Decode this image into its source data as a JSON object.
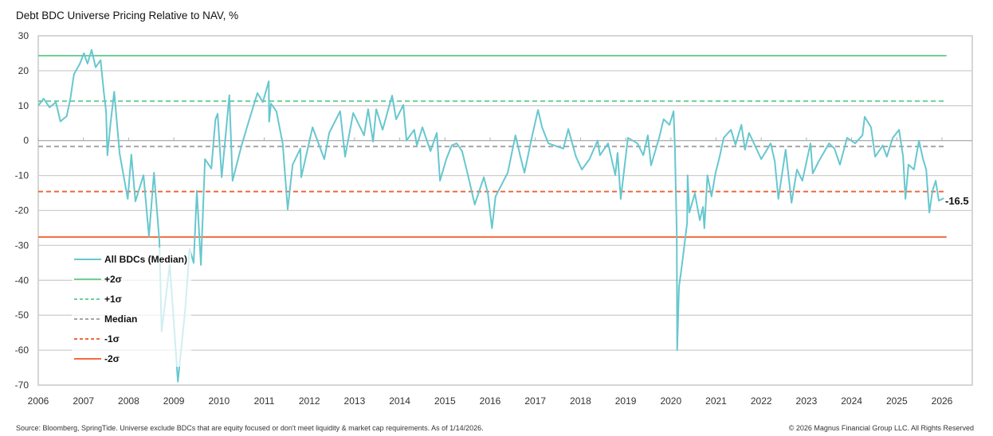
{
  "chart_data": {
    "type": "line",
    "title": "Debt BDC Universe Pricing Relative to NAV, %",
    "xlabel": "",
    "ylabel": "",
    "ylim": [
      -70,
      30
    ],
    "xlim": [
      2006,
      2026
    ],
    "yticks": [
      "30",
      "20",
      "10",
      "0",
      "-10",
      "-20",
      "-30",
      "-40",
      "-50",
      "-60",
      "-70"
    ],
    "xticks": [
      "2006",
      "2007",
      "2008",
      "2009",
      "2010",
      "2011",
      "2012",
      "2013",
      "2014",
      "2015",
      "2016",
      "2017",
      "2018",
      "2019",
      "2020",
      "2021",
      "2022",
      "2023",
      "2024",
      "2025",
      "2026"
    ],
    "grid": true,
    "legend_position": "bottom-left",
    "series": [
      {
        "name": "All BDCs (Median)",
        "color": "#67c7cf",
        "points": [
          [
            2006.0,
            10
          ],
          [
            2006.12,
            12
          ],
          [
            2006.25,
            9.5
          ],
          [
            2006.39,
            11
          ],
          [
            2006.49,
            5.5
          ],
          [
            2006.63,
            7
          ],
          [
            2006.71,
            12
          ],
          [
            2006.79,
            19
          ],
          [
            2006.92,
            22
          ],
          [
            2007.01,
            25
          ],
          [
            2007.09,
            22
          ],
          [
            2007.18,
            26
          ],
          [
            2007.27,
            21
          ],
          [
            2007.38,
            23
          ],
          [
            2007.45,
            14
          ],
          [
            2007.5,
            8.4
          ],
          [
            2007.53,
            -4.2
          ],
          [
            2007.6,
            5
          ],
          [
            2007.68,
            14
          ],
          [
            2007.8,
            -3.7
          ],
          [
            2007.98,
            -16.7
          ],
          [
            2008.06,
            -4
          ],
          [
            2008.15,
            -17.4
          ],
          [
            2008.33,
            -9.9
          ],
          [
            2008.45,
            -27.4
          ],
          [
            2008.56,
            -9.2
          ],
          [
            2008.68,
            -28.8
          ],
          [
            2008.73,
            -54.7
          ],
          [
            2008.91,
            -35.6
          ],
          [
            2009.0,
            -52
          ],
          [
            2009.09,
            -69
          ],
          [
            2009.25,
            -48.6
          ],
          [
            2009.35,
            -31
          ],
          [
            2009.44,
            -35
          ],
          [
            2009.51,
            -14.4
          ],
          [
            2009.6,
            -35.6
          ],
          [
            2009.69,
            -5.3
          ],
          [
            2009.83,
            -8
          ],
          [
            2009.92,
            6
          ],
          [
            2009.97,
            7.7
          ],
          [
            2010.06,
            -10.5
          ],
          [
            2010.23,
            13
          ],
          [
            2010.3,
            -11.5
          ],
          [
            2010.5,
            -1.4
          ],
          [
            2010.67,
            6
          ],
          [
            2010.85,
            13.6
          ],
          [
            2010.97,
            11
          ],
          [
            2011.1,
            17
          ],
          [
            2011.11,
            5.4
          ],
          [
            2011.15,
            10.6
          ],
          [
            2011.27,
            8.4
          ],
          [
            2011.41,
            -0.8
          ],
          [
            2011.52,
            -19.7
          ],
          [
            2011.63,
            -6.9
          ],
          [
            2011.8,
            -2.3
          ],
          [
            2011.82,
            -10.5
          ],
          [
            2012.07,
            3.8
          ],
          [
            2012.33,
            -5.3
          ],
          [
            2012.44,
            2.2
          ],
          [
            2012.68,
            8.4
          ],
          [
            2012.79,
            -4.6
          ],
          [
            2012.97,
            7.9
          ],
          [
            2013.21,
            1.5
          ],
          [
            2013.3,
            9
          ],
          [
            2013.41,
            -0.3
          ],
          [
            2013.48,
            9
          ],
          [
            2013.62,
            3.1
          ],
          [
            2013.83,
            12.9
          ],
          [
            2013.92,
            6.1
          ],
          [
            2014.08,
            10.2
          ],
          [
            2014.15,
            0
          ],
          [
            2014.32,
            3.1
          ],
          [
            2014.38,
            -1.4
          ],
          [
            2014.5,
            3.8
          ],
          [
            2014.68,
            -3
          ],
          [
            2014.82,
            2.2
          ],
          [
            2014.89,
            -11.5
          ],
          [
            2015.03,
            -5.3
          ],
          [
            2015.15,
            -1.4
          ],
          [
            2015.26,
            -0.8
          ],
          [
            2015.38,
            -3
          ],
          [
            2015.52,
            -10.5
          ],
          [
            2015.66,
            -18.3
          ],
          [
            2015.86,
            -10.5
          ],
          [
            2015.95,
            -15.1
          ],
          [
            2016.04,
            -25.1
          ],
          [
            2016.12,
            -16
          ],
          [
            2016.39,
            -9.2
          ],
          [
            2016.56,
            1.5
          ],
          [
            2016.67,
            -4.6
          ],
          [
            2016.76,
            -9.2
          ],
          [
            2016.92,
            0.8
          ],
          [
            2017.06,
            8.8
          ],
          [
            2017.15,
            3.8
          ],
          [
            2017.29,
            -0.8
          ],
          [
            2017.62,
            -2.3
          ],
          [
            2017.73,
            3.3
          ],
          [
            2017.9,
            -4.6
          ],
          [
            2018.03,
            -8.3
          ],
          [
            2018.2,
            -5.3
          ],
          [
            2018.38,
            0
          ],
          [
            2018.43,
            -4.2
          ],
          [
            2018.61,
            -0.8
          ],
          [
            2018.77,
            -9.9
          ],
          [
            2018.82,
            -3.5
          ],
          [
            2018.89,
            -16.7
          ],
          [
            2019.05,
            0.8
          ],
          [
            2019.26,
            -0.8
          ],
          [
            2019.39,
            -4.2
          ],
          [
            2019.49,
            1.5
          ],
          [
            2019.56,
            -7.1
          ],
          [
            2019.74,
            0.8
          ],
          [
            2019.84,
            6.1
          ],
          [
            2019.97,
            4.5
          ],
          [
            2020.06,
            8.4
          ],
          [
            2020.09,
            -2.3
          ],
          [
            2020.13,
            -26.5
          ],
          [
            2020.14,
            -60
          ],
          [
            2020.18,
            -41.8
          ],
          [
            2020.23,
            -37.2
          ],
          [
            2020.29,
            -31
          ],
          [
            2020.36,
            -23.5
          ],
          [
            2020.37,
            -9.9
          ],
          [
            2020.41,
            -20.6
          ],
          [
            2020.53,
            -15.1
          ],
          [
            2020.64,
            -22.8
          ],
          [
            2020.71,
            -19
          ],
          [
            2020.74,
            -25.1
          ],
          [
            2020.81,
            -9.9
          ],
          [
            2020.9,
            -16
          ],
          [
            2020.99,
            -9.2
          ],
          [
            2021.08,
            -4.6
          ],
          [
            2021.17,
            0.8
          ],
          [
            2021.33,
            3.1
          ],
          [
            2021.43,
            -1.2
          ],
          [
            2021.56,
            4.5
          ],
          [
            2021.64,
            -2.6
          ],
          [
            2021.73,
            2.2
          ],
          [
            2022.0,
            -5.3
          ],
          [
            2022.21,
            -0.8
          ],
          [
            2022.3,
            -6
          ],
          [
            2022.38,
            -16.7
          ],
          [
            2022.54,
            -2.6
          ],
          [
            2022.67,
            -17.8
          ],
          [
            2022.79,
            -8.3
          ],
          [
            2022.91,
            -11.5
          ],
          [
            2023.09,
            -0.8
          ],
          [
            2023.14,
            -9.4
          ],
          [
            2023.27,
            -6
          ],
          [
            2023.5,
            -0.8
          ],
          [
            2023.62,
            -2.3
          ],
          [
            2023.74,
            -6.9
          ],
          [
            2023.9,
            0.8
          ],
          [
            2024.08,
            -0.8
          ],
          [
            2024.24,
            1.5
          ],
          [
            2024.29,
            6.8
          ],
          [
            2024.43,
            3.8
          ],
          [
            2024.52,
            -4.6
          ],
          [
            2024.69,
            -1.4
          ],
          [
            2024.78,
            -4.6
          ],
          [
            2024.91,
            0.8
          ],
          [
            2025.05,
            3.1
          ],
          [
            2025.14,
            -4.6
          ],
          [
            2025.19,
            -16.7
          ],
          [
            2025.26,
            -6.9
          ],
          [
            2025.38,
            -8.3
          ],
          [
            2025.49,
            0
          ],
          [
            2025.58,
            -5.3
          ],
          [
            2025.65,
            -8.3
          ],
          [
            2025.72,
            -20.6
          ],
          [
            2025.79,
            -14.4
          ],
          [
            2025.86,
            -11.5
          ],
          [
            2025.93,
            -17.2
          ],
          [
            2026.04,
            -16.5
          ]
        ]
      }
    ],
    "reference_lines": [
      {
        "name": "+2σ",
        "value": 24.3,
        "color": "#6fcf97",
        "dashed": false
      },
      {
        "name": "+1σ",
        "value": 11.3,
        "color": "#6fcf97",
        "dashed": true
      },
      {
        "name": "Median",
        "value": -1.7,
        "color": "#a6a6a6",
        "dashed": true
      },
      {
        "name": "-1σ",
        "value": -14.6,
        "color": "#f26a3d",
        "dashed": true
      },
      {
        "name": "-2σ",
        "value": -27.6,
        "color": "#f26a3d",
        "dashed": false
      }
    ],
    "last_value_label": "-16.5"
  },
  "footer": {
    "source": "Source: Bloomberg, SpringTide. Universe exclude BDCs that are equity focused or don't meet liquidity & market cap requirements. As of 1/14/2026.",
    "copyright": "© 2026 Magnus Financial Group LLC. All Rights Reserved"
  }
}
